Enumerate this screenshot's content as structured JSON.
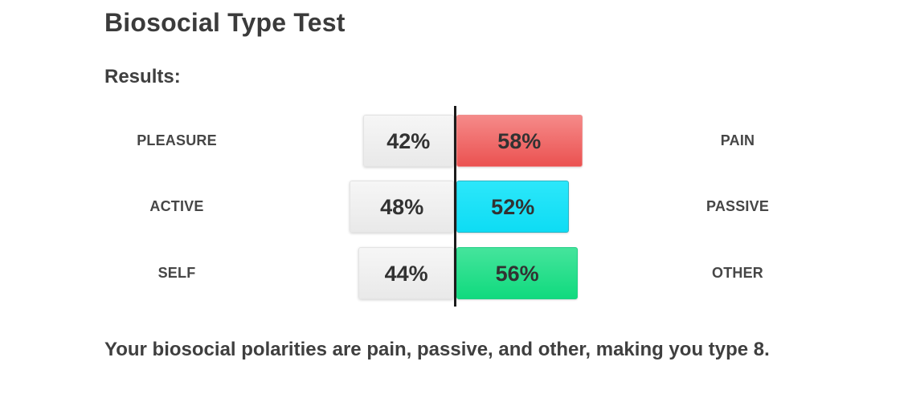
{
  "header": {
    "title": "Biosocial Type Test",
    "results_label": "Results:"
  },
  "chart_data": {
    "type": "bar",
    "subtype": "diverging-horizontal-pair",
    "title": "Biosocial Type Test results",
    "unit": "%",
    "center_line": true,
    "center_line_color": "#1b1b1b",
    "neutral_bar": {
      "fill_top": "#f6f6f6",
      "fill_bottom": "#e9e9e9",
      "border": "#e3e3e3"
    },
    "rows": [
      {
        "left_label": "PLEASURE",
        "left_value": 42,
        "right_label": "PAIN",
        "right_value": 58,
        "bar": {
          "fill_top": "#f58a89",
          "fill_bottom": "#eb5251",
          "border": "#ef8f8e"
        }
      },
      {
        "left_label": "ACTIVE",
        "left_value": 48,
        "right_label": "PASSIVE",
        "right_value": 52,
        "bar": {
          "fill_top": "#2ce7fa",
          "fill_bottom": "#0edcf4",
          "border": "#2cb4c4"
        }
      },
      {
        "left_label": "SELF",
        "left_value": 44,
        "right_label": "OTHER",
        "right_value": 56,
        "bar": {
          "fill_top": "#45e49c",
          "fill_bottom": "#10da7e",
          "border": "#22cf86"
        }
      }
    ]
  },
  "footer": {
    "text": "Your biosocial polarities are pain, passive, and other, making you type 8."
  }
}
